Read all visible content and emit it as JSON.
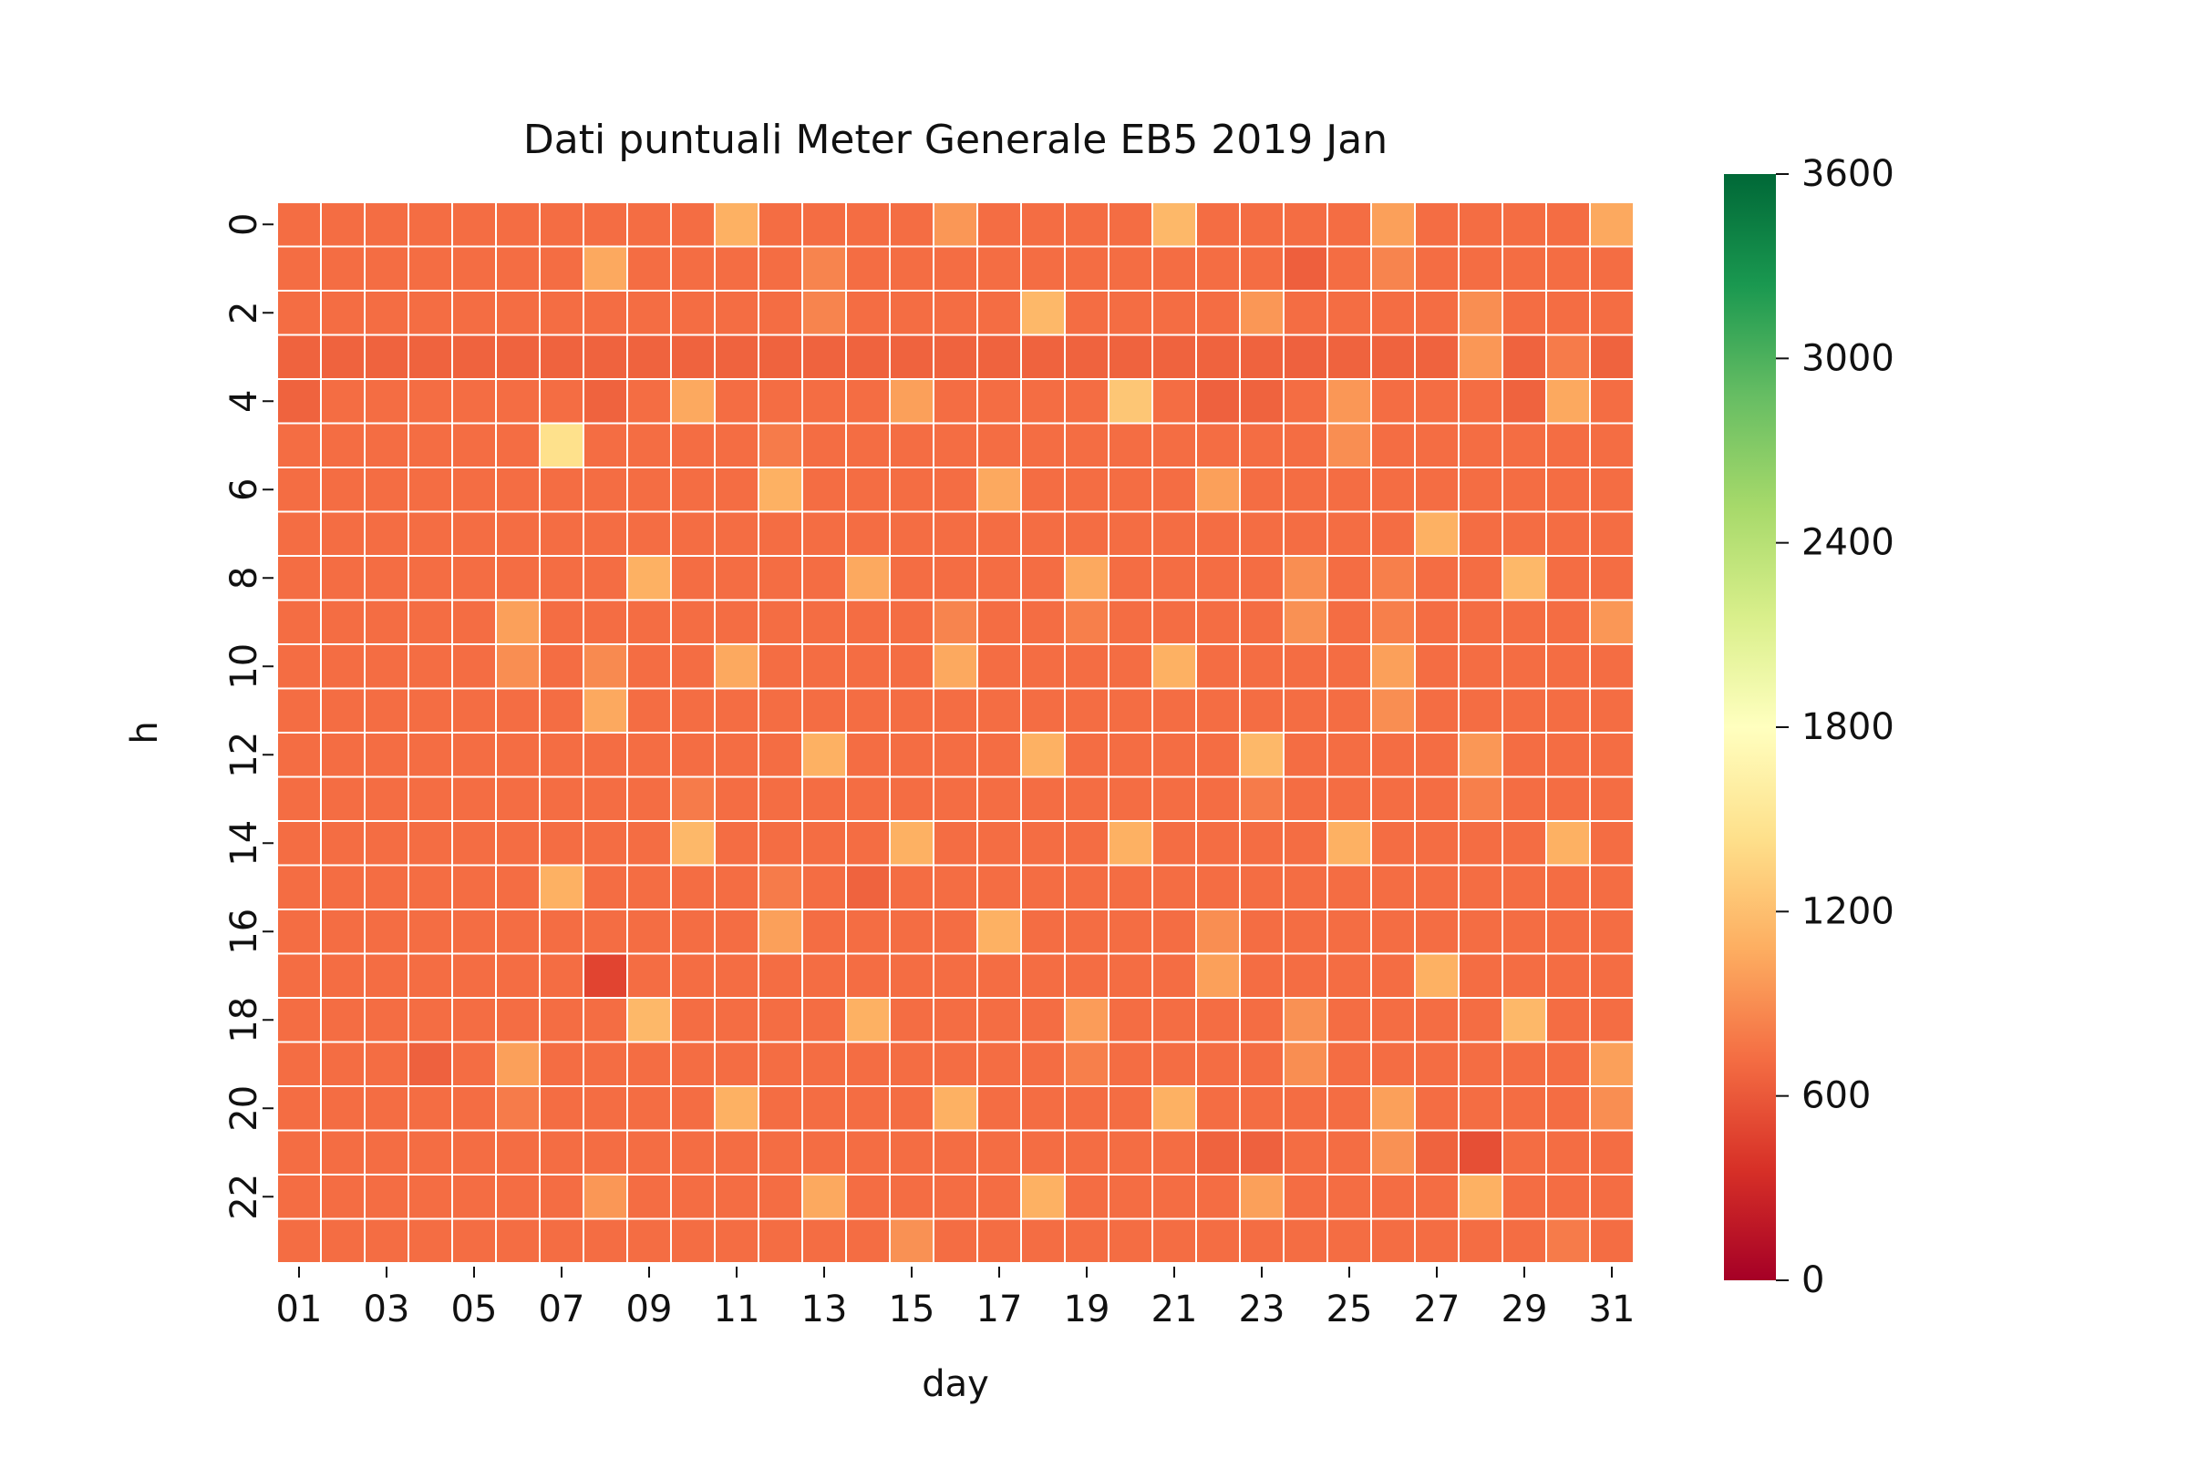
{
  "chart_data": {
    "type": "heatmap",
    "title": "Dati puntuali Meter Generale EB5 2019 Jan",
    "xlabel": "day",
    "ylabel": "h",
    "x": [
      "01",
      "02",
      "03",
      "04",
      "05",
      "06",
      "07",
      "08",
      "09",
      "10",
      "11",
      "12",
      "13",
      "14",
      "15",
      "16",
      "17",
      "18",
      "19",
      "20",
      "21",
      "22",
      "23",
      "24",
      "25",
      "26",
      "27",
      "28",
      "29",
      "30",
      "31"
    ],
    "y": [
      0,
      1,
      2,
      3,
      4,
      5,
      6,
      7,
      8,
      9,
      10,
      11,
      12,
      13,
      14,
      15,
      16,
      17,
      18,
      19,
      20,
      21,
      22,
      23
    ],
    "x_tick_labels": [
      "01",
      "03",
      "05",
      "07",
      "09",
      "11",
      "13",
      "15",
      "17",
      "19",
      "21",
      "23",
      "25",
      "27",
      "29",
      "31"
    ],
    "y_tick_labels": [
      "0",
      "2",
      "4",
      "6",
      "8",
      "10",
      "12",
      "14",
      "16",
      "18",
      "20",
      "22"
    ],
    "colorbar": {
      "colormap": "RdYlGn",
      "vmin": 0,
      "vmax": 3600,
      "ticks": [
        "0",
        "600",
        "1200",
        "1800",
        "2400",
        "3000",
        "3600"
      ]
    },
    "base_value": 720,
    "overrides": [
      {
        "h": 0,
        "day": "11",
        "value": 1100
      },
      {
        "h": 0,
        "day": "16",
        "value": 950
      },
      {
        "h": 0,
        "day": "21",
        "value": 1150
      },
      {
        "h": 0,
        "day": "26",
        "value": 1000
      },
      {
        "h": 0,
        "day": "31",
        "value": 1050
      },
      {
        "h": 1,
        "day": "08",
        "value": 1050
      },
      {
        "h": 1,
        "day": "13",
        "value": 850
      },
      {
        "h": 1,
        "day": "24",
        "value": 640
      },
      {
        "h": 1,
        "day": "26",
        "value": 850
      },
      {
        "h": 2,
        "day": "13",
        "value": 850
      },
      {
        "h": 2,
        "day": "18",
        "value": 1150
      },
      {
        "h": 2,
        "day": "23",
        "value": 950
      },
      {
        "h": 2,
        "day": "28",
        "value": 900
      },
      {
        "h": 3,
        "day": "01",
        "value": 660
      },
      {
        "h": 3,
        "day": "02",
        "value": 660
      },
      {
        "h": 3,
        "day": "03",
        "value": 660
      },
      {
        "h": 3,
        "day": "04",
        "value": 660
      },
      {
        "h": 3,
        "day": "05",
        "value": 660
      },
      {
        "h": 3,
        "day": "06",
        "value": 660
      },
      {
        "h": 3,
        "day": "07",
        "value": 660
      },
      {
        "h": 3,
        "day": "08",
        "value": 660
      },
      {
        "h": 3,
        "day": "09",
        "value": 660
      },
      {
        "h": 3,
        "day": "10",
        "value": 660
      },
      {
        "h": 3,
        "day": "11",
        "value": 660
      },
      {
        "h": 3,
        "day": "12",
        "value": 660
      },
      {
        "h": 3,
        "day": "13",
        "value": 660
      },
      {
        "h": 3,
        "day": "14",
        "value": 660
      },
      {
        "h": 3,
        "day": "15",
        "value": 660
      },
      {
        "h": 3,
        "day": "16",
        "value": 660
      },
      {
        "h": 3,
        "day": "17",
        "value": 660
      },
      {
        "h": 3,
        "day": "18",
        "value": 660
      },
      {
        "h": 3,
        "day": "19",
        "value": 660
      },
      {
        "h": 3,
        "day": "20",
        "value": 660
      },
      {
        "h": 3,
        "day": "21",
        "value": 660
      },
      {
        "h": 3,
        "day": "22",
        "value": 660
      },
      {
        "h": 3,
        "day": "23",
        "value": 660
      },
      {
        "h": 3,
        "day": "24",
        "value": 650
      },
      {
        "h": 3,
        "day": "25",
        "value": 660
      },
      {
        "h": 3,
        "day": "26",
        "value": 660
      },
      {
        "h": 3,
        "day": "27",
        "value": 660
      },
      {
        "h": 3,
        "day": "28",
        "value": 950
      },
      {
        "h": 3,
        "day": "29",
        "value": 660
      },
      {
        "h": 3,
        "day": "30",
        "value": 800
      },
      {
        "h": 3,
        "day": "31",
        "value": 660
      },
      {
        "h": 4,
        "day": "01",
        "value": 660
      },
      {
        "h": 4,
        "day": "08",
        "value": 660
      },
      {
        "h": 4,
        "day": "10",
        "value": 1050
      },
      {
        "h": 4,
        "day": "15",
        "value": 1000
      },
      {
        "h": 4,
        "day": "20",
        "value": 1250
      },
      {
        "h": 4,
        "day": "22",
        "value": 650
      },
      {
        "h": 4,
        "day": "23",
        "value": 660
      },
      {
        "h": 4,
        "day": "25",
        "value": 950
      },
      {
        "h": 4,
        "day": "29",
        "value": 660
      },
      {
        "h": 4,
        "day": "30",
        "value": 1050
      },
      {
        "h": 5,
        "day": "07",
        "value": 1450
      },
      {
        "h": 5,
        "day": "12",
        "value": 800
      },
      {
        "h": 5,
        "day": "25",
        "value": 900
      },
      {
        "h": 6,
        "day": "12",
        "value": 1100
      },
      {
        "h": 6,
        "day": "17",
        "value": 1050
      },
      {
        "h": 6,
        "day": "22",
        "value": 1000
      },
      {
        "h": 7,
        "day": "27",
        "value": 1100
      },
      {
        "h": 8,
        "day": "09",
        "value": 1100
      },
      {
        "h": 8,
        "day": "14",
        "value": 1050
      },
      {
        "h": 8,
        "day": "19",
        "value": 1050
      },
      {
        "h": 8,
        "day": "24",
        "value": 900
      },
      {
        "h": 8,
        "day": "26",
        "value": 820
      },
      {
        "h": 8,
        "day": "29",
        "value": 1150
      },
      {
        "h": 9,
        "day": "06",
        "value": 1000
      },
      {
        "h": 9,
        "day": "16",
        "value": 850
      },
      {
        "h": 9,
        "day": "19",
        "value": 820
      },
      {
        "h": 9,
        "day": "24",
        "value": 920
      },
      {
        "h": 9,
        "day": "26",
        "value": 820
      },
      {
        "h": 9,
        "day": "31",
        "value": 950
      },
      {
        "h": 10,
        "day": "06",
        "value": 900
      },
      {
        "h": 10,
        "day": "08",
        "value": 880
      },
      {
        "h": 10,
        "day": "11",
        "value": 1050
      },
      {
        "h": 10,
        "day": "16",
        "value": 1050
      },
      {
        "h": 10,
        "day": "21",
        "value": 1100
      },
      {
        "h": 10,
        "day": "26",
        "value": 1000
      },
      {
        "h": 11,
        "day": "08",
        "value": 1050
      },
      {
        "h": 11,
        "day": "26",
        "value": 900
      },
      {
        "h": 12,
        "day": "13",
        "value": 1100
      },
      {
        "h": 12,
        "day": "18",
        "value": 1100
      },
      {
        "h": 12,
        "day": "23",
        "value": 1150
      },
      {
        "h": 12,
        "day": "28",
        "value": 950
      },
      {
        "h": 13,
        "day": "10",
        "value": 800
      },
      {
        "h": 13,
        "day": "23",
        "value": 800
      },
      {
        "h": 13,
        "day": "28",
        "value": 820
      },
      {
        "h": 14,
        "day": "10",
        "value": 1150
      },
      {
        "h": 14,
        "day": "15",
        "value": 1100
      },
      {
        "h": 14,
        "day": "20",
        "value": 1100
      },
      {
        "h": 14,
        "day": "25",
        "value": 1100
      },
      {
        "h": 14,
        "day": "30",
        "value": 1100
      },
      {
        "h": 15,
        "day": "07",
        "value": 1100
      },
      {
        "h": 15,
        "day": "12",
        "value": 800
      },
      {
        "h": 15,
        "day": "14",
        "value": 660
      },
      {
        "h": 16,
        "day": "12",
        "value": 1000
      },
      {
        "h": 16,
        "day": "17",
        "value": 1100
      },
      {
        "h": 16,
        "day": "22",
        "value": 900
      },
      {
        "h": 17,
        "day": "08",
        "value": 480
      },
      {
        "h": 17,
        "day": "22",
        "value": 1000
      },
      {
        "h": 17,
        "day": "27",
        "value": 1100
      },
      {
        "h": 18,
        "day": "09",
        "value": 1150
      },
      {
        "h": 18,
        "day": "14",
        "value": 1100
      },
      {
        "h": 18,
        "day": "19",
        "value": 980
      },
      {
        "h": 18,
        "day": "24",
        "value": 920
      },
      {
        "h": 18,
        "day": "29",
        "value": 1150
      },
      {
        "h": 19,
        "day": "04",
        "value": 650
      },
      {
        "h": 19,
        "day": "06",
        "value": 1000
      },
      {
        "h": 19,
        "day": "19",
        "value": 820
      },
      {
        "h": 19,
        "day": "24",
        "value": 900
      },
      {
        "h": 19,
        "day": "31",
        "value": 1000
      },
      {
        "h": 20,
        "day": "06",
        "value": 800
      },
      {
        "h": 20,
        "day": "11",
        "value": 1100
      },
      {
        "h": 20,
        "day": "16",
        "value": 1100
      },
      {
        "h": 20,
        "day": "21",
        "value": 1100
      },
      {
        "h": 20,
        "day": "26",
        "value": 1000
      },
      {
        "h": 20,
        "day": "31",
        "value": 900
      },
      {
        "h": 21,
        "day": "22",
        "value": 660
      },
      {
        "h": 21,
        "day": "23",
        "value": 650
      },
      {
        "h": 21,
        "day": "26",
        "value": 920
      },
      {
        "h": 21,
        "day": "27",
        "value": 660
      },
      {
        "h": 21,
        "day": "28",
        "value": 540
      },
      {
        "h": 22,
        "day": "08",
        "value": 950
      },
      {
        "h": 22,
        "day": "13",
        "value": 1050
      },
      {
        "h": 22,
        "day": "18",
        "value": 1100
      },
      {
        "h": 22,
        "day": "23",
        "value": 1000
      },
      {
        "h": 22,
        "day": "28",
        "value": 1100
      },
      {
        "h": 23,
        "day": "15",
        "value": 920
      },
      {
        "h": 23,
        "day": "30",
        "value": 800
      }
    ]
  }
}
